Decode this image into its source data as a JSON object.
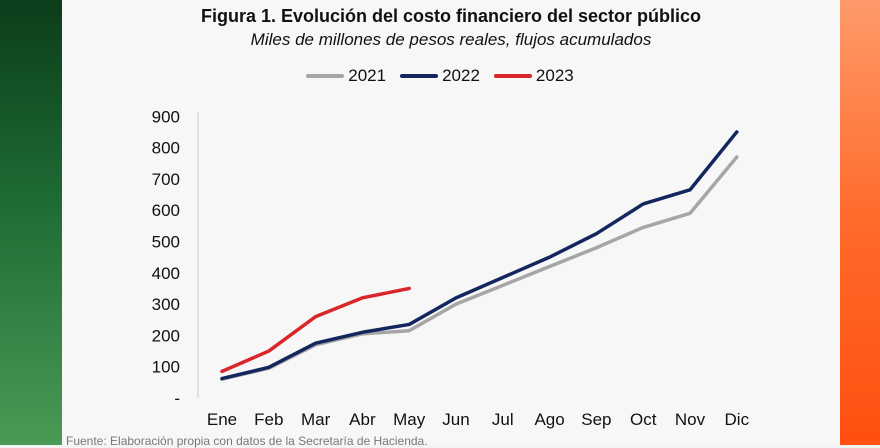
{
  "figure": {
    "title": "Figura 1. Evolución del costo financiero del sector público",
    "subtitle": "Miles de millones de pesos reales, flujos acumulados",
    "footnote": "Fuente: Elaboración propia con datos de la Secretaría de Hacienda."
  },
  "colors": {
    "2021": "#a6a6a6",
    "2022": "#14265e",
    "2023": "#d9262a"
  },
  "chart_data": {
    "type": "line",
    "title": "Figura 1. Evolución del costo financiero del sector público",
    "subtitle": "Miles de millones de pesos reales, flujos acumulados",
    "xlabel": "",
    "ylabel": "",
    "categories": [
      "Ene",
      "Feb",
      "Mar",
      "Abr",
      "May",
      "Jun",
      "Jul",
      "Ago",
      "Sep",
      "Oct",
      "Nov",
      "Dic"
    ],
    "y_tick_labels": [
      "-",
      "100",
      "200",
      "300",
      "400",
      "500",
      "600",
      "700",
      "800",
      "900"
    ],
    "ylim": [
      0,
      900
    ],
    "grid": false,
    "legend_position": "top",
    "series": [
      {
        "name": "2021",
        "color": "#a6a6a6",
        "values": [
          60,
          95,
          170,
          205,
          215,
          300,
          360,
          420,
          480,
          545,
          590,
          770
        ]
      },
      {
        "name": "2022",
        "color": "#14265e",
        "values": [
          62,
          98,
          175,
          210,
          235,
          320,
          385,
          450,
          525,
          620,
          665,
          850
        ]
      },
      {
        "name": "2023",
        "color": "#d9262a",
        "values": [
          85,
          150,
          260,
          320,
          350,
          null,
          null,
          null,
          null,
          null,
          null,
          null
        ]
      }
    ]
  }
}
